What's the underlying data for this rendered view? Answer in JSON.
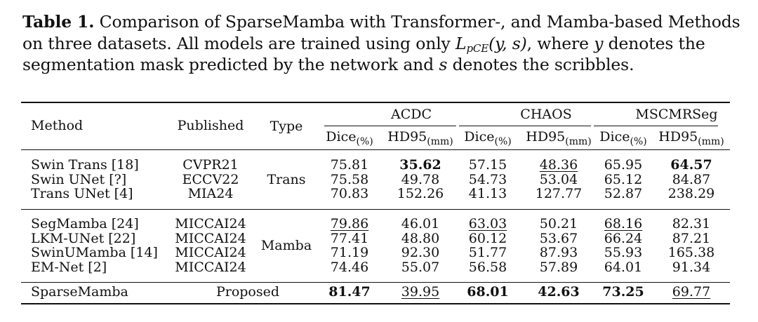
{
  "caption": {
    "label": "Table 1.",
    "part1": "Comparison of SparseMamba with Transformer-, and Mamba-based Methods on three datasets. All models are trained using only ",
    "loss_main": "L",
    "loss_sub": "pCE",
    "loss_args": "(y, s)",
    "part2": ", where ",
    "var_y": "y",
    "part3": " denotes the segmentation mask predicted by the network and ",
    "var_s": "s",
    "part4": " denotes the scribbles."
  },
  "table": {
    "headers": {
      "method": "Method",
      "published": "Published",
      "type": "Type",
      "datasets": [
        "ACDC",
        "CHAOS",
        "MSCMRSeg"
      ],
      "metrics": [
        {
          "main": "Dice",
          "sub": "(%)"
        },
        {
          "main": "HD95",
          "sub": "(mm)"
        },
        {
          "main": "Dice",
          "sub": "(%)"
        },
        {
          "main": "HD95",
          "sub": "(mm)"
        },
        {
          "main": "Dice",
          "sub": "(%)"
        },
        {
          "main": "HD95",
          "sub": "(mm)"
        }
      ]
    },
    "groups": [
      {
        "type": "Trans",
        "rows": [
          {
            "method": "Swin Trans [18]",
            "published": "CVPR21",
            "values": [
              "75.81",
              "35.62",
              "57.15",
              "48.36",
              "65.95",
              "64.57"
            ],
            "bold": [
              false,
              true,
              false,
              false,
              false,
              true
            ],
            "underline": [
              false,
              false,
              false,
              true,
              false,
              false
            ]
          },
          {
            "method": "Swin UNet [?]",
            "published": "ECCV22",
            "values": [
              "75.58",
              "49.78",
              "54.73",
              "53.04",
              "65.12",
              "84.87"
            ],
            "bold": [
              false,
              false,
              false,
              false,
              false,
              false
            ],
            "underline": [
              false,
              false,
              false,
              false,
              false,
              false
            ]
          },
          {
            "method": "Trans UNet [4]",
            "published": "MIA24",
            "values": [
              "70.83",
              "152.26",
              "41.13",
              "127.77",
              "52.87",
              "238.29"
            ],
            "bold": [
              false,
              false,
              false,
              false,
              false,
              false
            ],
            "underline": [
              false,
              false,
              false,
              false,
              false,
              false
            ]
          }
        ]
      },
      {
        "type": "Mamba",
        "rows": [
          {
            "method": "SegMamba [24]",
            "published": "MICCAI24",
            "values": [
              "79.86",
              "46.01",
              "63.03",
              "50.21",
              "68.16",
              "82.31"
            ],
            "bold": [
              false,
              false,
              false,
              false,
              false,
              false
            ],
            "underline": [
              true,
              false,
              true,
              false,
              true,
              false
            ]
          },
          {
            "method": "LKM-UNet [22]",
            "published": "MICCAI24",
            "values": [
              "77.41",
              "48.80",
              "60.12",
              "53.67",
              "66.24",
              "87.21"
            ],
            "bold": [
              false,
              false,
              false,
              false,
              false,
              false
            ],
            "underline": [
              false,
              false,
              false,
              false,
              false,
              false
            ]
          },
          {
            "method": "SwinUMamba [14]",
            "published": "MICCAI24",
            "values": [
              "71.19",
              "92.30",
              "51.77",
              "87.93",
              "55.93",
              "165.38"
            ],
            "bold": [
              false,
              false,
              false,
              false,
              false,
              false
            ],
            "underline": [
              false,
              false,
              false,
              false,
              false,
              false
            ]
          },
          {
            "method": "EM-Net [2]",
            "published": "MICCAI24",
            "values": [
              "74.46",
              "55.07",
              "56.58",
              "57.89",
              "64.01",
              "91.34"
            ],
            "bold": [
              false,
              false,
              false,
              false,
              false,
              false
            ],
            "underline": [
              false,
              false,
              false,
              false,
              false,
              false
            ]
          }
        ]
      }
    ],
    "proposed": {
      "method": "SparseMamba",
      "label": "Proposed",
      "values": [
        "81.47",
        "39.95",
        "68.01",
        "42.63",
        "73.25",
        "69.77"
      ],
      "bold": [
        true,
        false,
        true,
        true,
        true,
        false
      ],
      "underline": [
        false,
        true,
        false,
        false,
        false,
        true
      ]
    }
  }
}
